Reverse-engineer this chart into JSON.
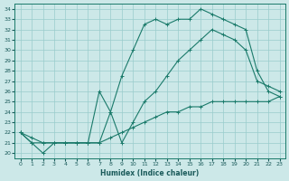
{
  "xlabel": "Humidex (Indice chaleur)",
  "bg_color": "#cce8e8",
  "grid_color": "#99cccc",
  "line_color": "#1a7a6a",
  "xlim": [
    -0.5,
    23.5
  ],
  "ylim": [
    19.5,
    34.5
  ],
  "xticks": [
    0,
    1,
    2,
    3,
    4,
    5,
    6,
    7,
    8,
    9,
    10,
    11,
    12,
    13,
    14,
    15,
    16,
    17,
    18,
    19,
    20,
    21,
    22,
    23
  ],
  "yticks": [
    20,
    21,
    22,
    23,
    24,
    25,
    26,
    27,
    28,
    29,
    30,
    31,
    32,
    33,
    34
  ],
  "line1_x": [
    0,
    1,
    2,
    3,
    4,
    5,
    6,
    7,
    8,
    9,
    10,
    11,
    12,
    13,
    14,
    15,
    16,
    17,
    18,
    19,
    20,
    21,
    22,
    23
  ],
  "line1_y": [
    22.0,
    21.0,
    20.0,
    21.0,
    21.0,
    21.0,
    21.0,
    21.0,
    24.0,
    27.5,
    30.0,
    32.5,
    33.0,
    32.5,
    33.0,
    33.0,
    34.0,
    33.5,
    33.0,
    32.5,
    32.0,
    28.0,
    26.0,
    25.5
  ],
  "line2_x": [
    0,
    1,
    2,
    3,
    4,
    5,
    6,
    7,
    8,
    9,
    10,
    11,
    12,
    13,
    14,
    15,
    16,
    17,
    18,
    19,
    20,
    21,
    22,
    23
  ],
  "line2_y": [
    22.0,
    21.0,
    21.0,
    21.0,
    21.0,
    21.0,
    21.0,
    26.0,
    24.0,
    21.0,
    23.0,
    25.0,
    26.0,
    27.5,
    29.0,
    30.0,
    31.0,
    32.0,
    31.5,
    31.0,
    30.0,
    27.0,
    26.5,
    26.0
  ],
  "line3_x": [
    0,
    1,
    2,
    3,
    4,
    5,
    6,
    7,
    8,
    9,
    10,
    11,
    12,
    13,
    14,
    15,
    16,
    17,
    18,
    19,
    20,
    21,
    22,
    23
  ],
  "line3_y": [
    22.0,
    21.5,
    21.0,
    21.0,
    21.0,
    21.0,
    21.0,
    21.0,
    21.5,
    22.0,
    22.5,
    23.0,
    23.5,
    24.0,
    24.0,
    24.5,
    24.5,
    25.0,
    25.0,
    25.0,
    25.0,
    25.0,
    25.0,
    25.5
  ]
}
